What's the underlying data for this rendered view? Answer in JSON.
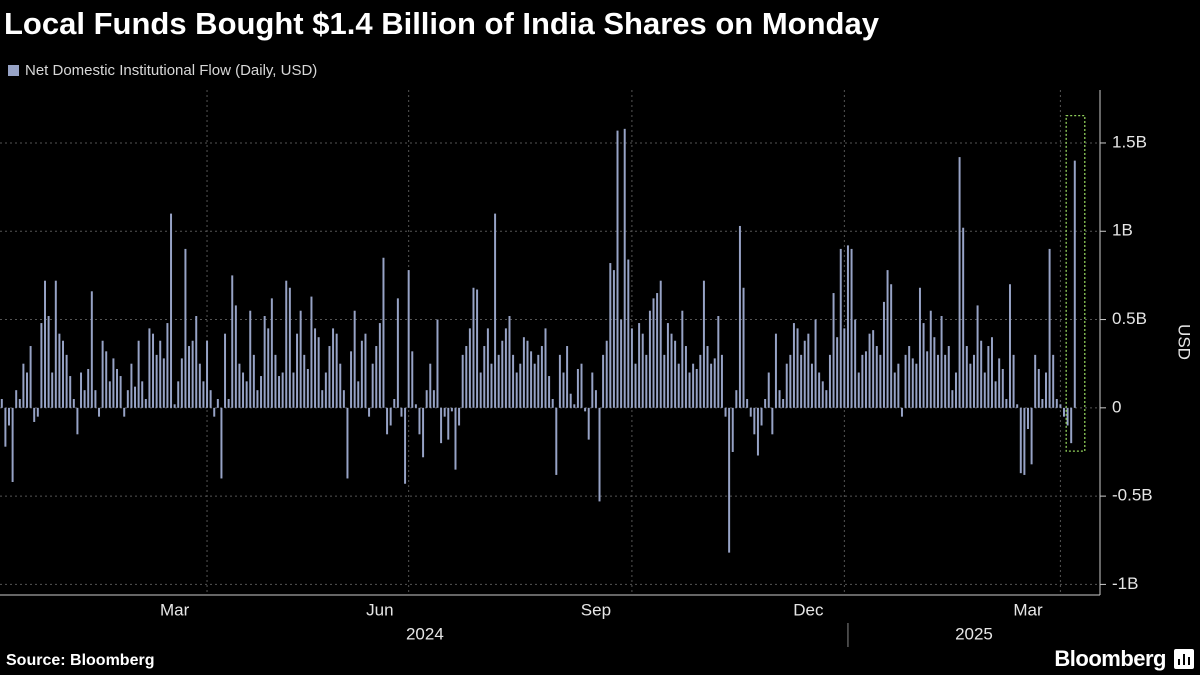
{
  "chart_data": {
    "type": "bar",
    "title": "Local Funds Bought $1.4 Billion of India Shares on Monday",
    "series": [
      {
        "name": "Net Domestic Institutional Flow (Daily, USD)",
        "color": "#97a3c6",
        "values": [
          0.05,
          -0.22,
          -0.1,
          -0.42,
          0.1,
          0.05,
          0.25,
          0.2,
          0.35,
          -0.08,
          -0.05,
          0.48,
          0.72,
          0.52,
          0.2,
          0.72,
          0.42,
          0.38,
          0.3,
          0.18,
          0.05,
          -0.15,
          0.2,
          0.1,
          0.22,
          0.66,
          0.1,
          -0.05,
          0.38,
          0.32,
          0.15,
          0.28,
          0.22,
          0.18,
          -0.05,
          0.1,
          0.25,
          0.12,
          0.38,
          0.15,
          0.05,
          0.45,
          0.42,
          0.3,
          0.38,
          0.28,
          0.48,
          1.1,
          0.02,
          0.15,
          0.28,
          0.9,
          0.35,
          0.38,
          0.52,
          0.25,
          0.15,
          0.38,
          0.1,
          -0.05,
          0.05,
          -0.4,
          0.42,
          0.05,
          0.75,
          0.58,
          0.25,
          0.2,
          0.15,
          0.55,
          0.3,
          0.1,
          0.18,
          0.52,
          0.45,
          0.62,
          0.3,
          0.18,
          0.2,
          0.72,
          0.68,
          0.2,
          0.42,
          0.55,
          0.3,
          0.22,
          0.63,
          0.45,
          0.4,
          0.1,
          0.2,
          0.35,
          0.45,
          0.42,
          0.25,
          0.1,
          -0.4,
          0.32,
          0.55,
          0.15,
          0.38,
          0.42,
          -0.05,
          0.25,
          0.35,
          0.48,
          0.85,
          -0.15,
          -0.1,
          0.05,
          0.62,
          -0.05,
          -0.43,
          0.78,
          0.32,
          0.02,
          -0.15,
          -0.28,
          0.1,
          0.25,
          0.1,
          0.5,
          -0.2,
          -0.05,
          -0.18,
          -0.02,
          -0.35,
          -0.1,
          0.3,
          0.35,
          0.45,
          0.68,
          0.67,
          0.2,
          0.35,
          0.45,
          0.25,
          1.1,
          0.3,
          0.38,
          0.45,
          0.52,
          0.3,
          0.2,
          0.25,
          0.4,
          0.38,
          0.32,
          0.25,
          0.3,
          0.35,
          0.45,
          0.18,
          0.05,
          -0.38,
          0.3,
          0.2,
          0.35,
          0.08,
          0.02,
          0.22,
          0.25,
          -0.02,
          -0.18,
          0.2,
          0.1,
          -0.53,
          0.3,
          0.38,
          0.82,
          0.78,
          1.57,
          0.5,
          1.58,
          0.84,
          0.45,
          0.25,
          0.48,
          0.42,
          0.3,
          0.55,
          0.62,
          0.65,
          0.72,
          0.3,
          0.48,
          0.42,
          0.38,
          0.25,
          0.55,
          0.35,
          0.2,
          0.25,
          0.22,
          0.3,
          0.72,
          0.35,
          0.25,
          0.28,
          0.52,
          0.3,
          -0.05,
          -0.82,
          -0.25,
          0.1,
          1.03,
          0.68,
          0.05,
          -0.05,
          -0.15,
          -0.27,
          -0.1,
          0.05,
          0.2,
          -0.15,
          0.42,
          0.1,
          0.05,
          0.25,
          0.3,
          0.48,
          0.45,
          0.3,
          0.38,
          0.42,
          0.25,
          0.5,
          0.2,
          0.15,
          0.1,
          0.3,
          0.65,
          0.4,
          0.9,
          0.45,
          0.92,
          0.9,
          0.5,
          0.2,
          0.3,
          0.32,
          0.42,
          0.44,
          0.35,
          0.3,
          0.6,
          0.78,
          0.7,
          0.2,
          0.25,
          -0.05,
          0.3,
          0.35,
          0.28,
          0.25,
          0.68,
          0.48,
          0.32,
          0.55,
          0.4,
          0.3,
          0.52,
          0.3,
          0.35,
          0.1,
          0.2,
          1.42,
          1.02,
          0.35,
          0.25,
          0.3,
          0.58,
          0.38,
          0.2,
          0.35,
          0.4,
          0.15,
          0.28,
          0.22,
          0.05,
          0.7,
          0.3,
          0.02,
          -0.37,
          -0.38,
          -0.12,
          -0.32,
          0.3,
          0.22,
          0.05,
          0.2,
          0.9,
          0.3,
          0.05,
          0.02,
          -0.05,
          -0.1,
          -0.2,
          1.4
        ]
      }
    ],
    "xlim": [
      -0.5,
      305
    ],
    "xticks": [
      {
        "value": 48,
        "label": "Mar"
      },
      {
        "value": 105,
        "label": "Jun"
      },
      {
        "value": 165,
        "label": "Sep"
      },
      {
        "value": 224,
        "label": "Dec"
      },
      {
        "value": 285,
        "label": "Mar"
      }
    ],
    "xgrid": [
      57,
      113,
      175,
      234,
      294
    ],
    "year_labels": [
      {
        "value": 117.5,
        "label": "2024"
      },
      {
        "value": 270,
        "label": "2025"
      }
    ],
    "year_separators": [
      235
    ],
    "ylim": [
      -1.06,
      1.8
    ],
    "yticks": [
      {
        "value": -1,
        "label": "-1B"
      },
      {
        "value": -0.5,
        "label": "-0.5B"
      },
      0,
      {
        "value": 0.5,
        "label": "0.5B"
      },
      {
        "value": 1,
        "label": "1B"
      },
      {
        "value": 1.5,
        "label": "1.5B"
      }
    ],
    "y_label": "USD",
    "grid": true,
    "source": "Source: Bloomberg",
    "brand": "Bloomberg"
  }
}
